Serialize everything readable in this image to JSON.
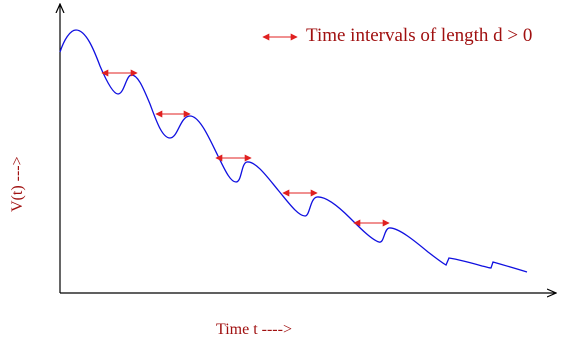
{
  "legend": {
    "text": "Time intervals of length   d > 0"
  },
  "axes": {
    "x_label": "Time t ---->",
    "y_label": "V(t) --->"
  },
  "colors": {
    "curve": "#1010e0",
    "interval_arrows": "#e02020",
    "label_text": "#a01010",
    "axis": "#000000"
  }
}
